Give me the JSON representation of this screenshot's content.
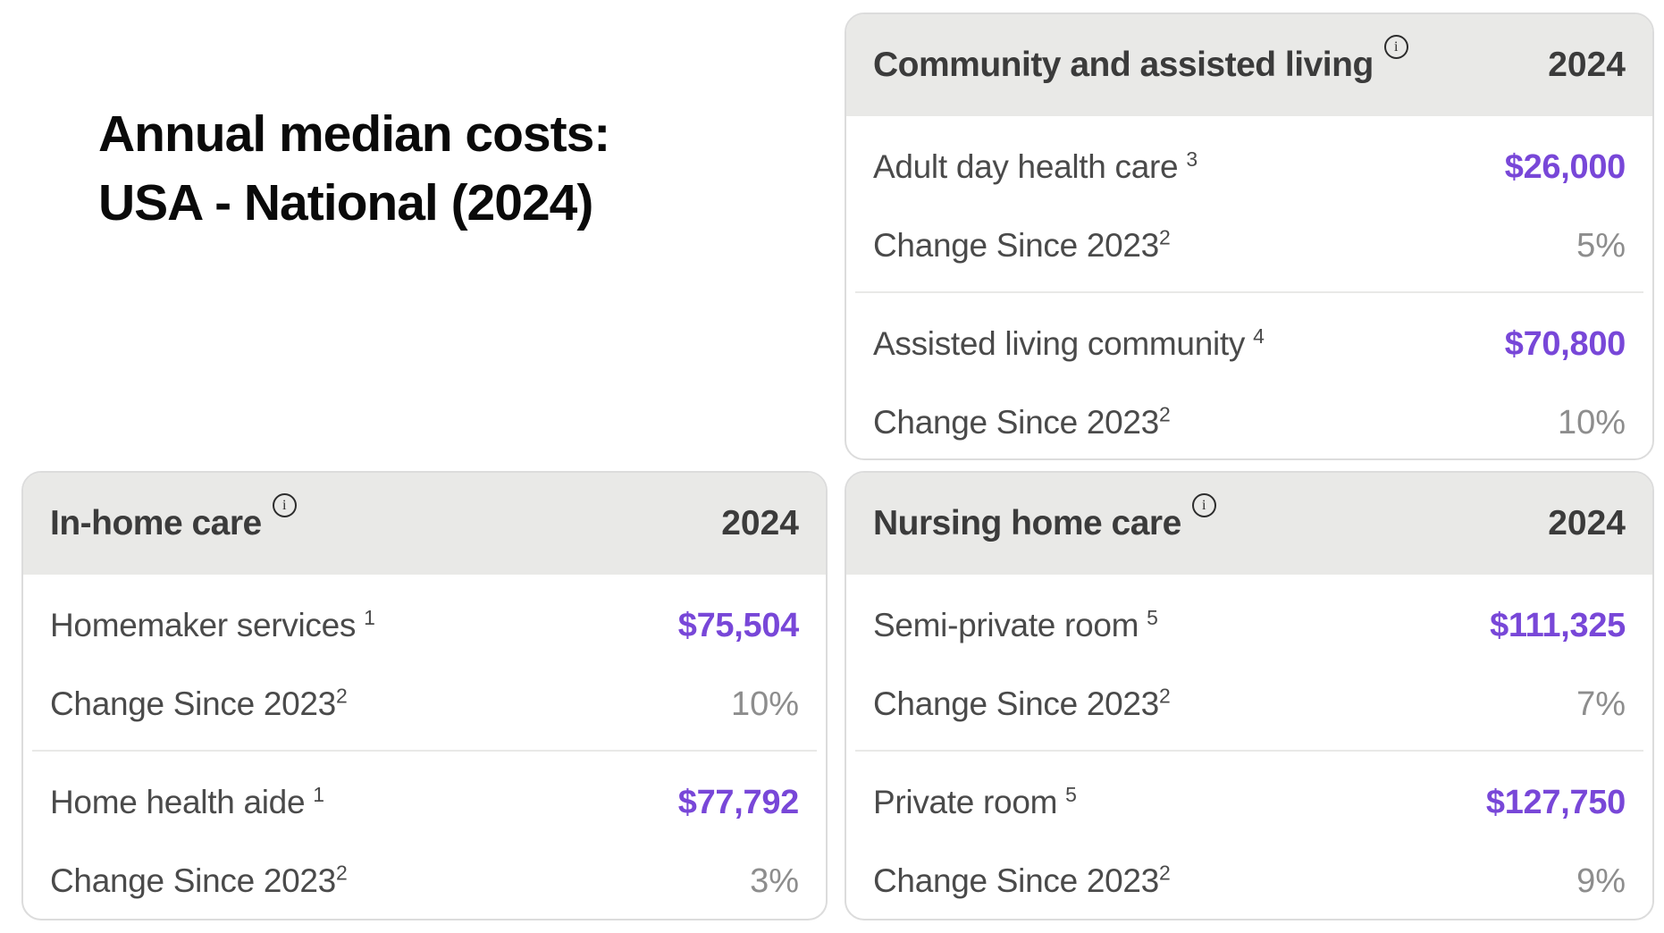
{
  "page": {
    "title_line1": "Annual median costs:",
    "title_line2": "USA - National (2024)"
  },
  "icons": {
    "info_glyph": "i"
  },
  "colors": {
    "value_accent": "#7847d8",
    "change_gray": "#8d8d8d",
    "header_bg": "#e9e9e7",
    "card_border": "#dcdcdc",
    "text_dark": "#3b3b3b"
  },
  "cards": [
    {
      "title": "Community and assisted living",
      "year": "2024",
      "groups": [
        {
          "label": "Adult day health care",
          "sup": "3",
          "value": "$26,000",
          "change_label": "Change Since 2023",
          "change_sup": "2",
          "change_value": "5%"
        },
        {
          "label": "Assisted living community",
          "sup": "4",
          "value": "$70,800",
          "change_label": "Change Since 2023",
          "change_sup": "2",
          "change_value": "10%"
        }
      ]
    },
    {
      "title": "In-home care",
      "year": "2024",
      "groups": [
        {
          "label": "Homemaker services",
          "sup": "1",
          "value": "$75,504",
          "change_label": "Change Since 2023",
          "change_sup": "2",
          "change_value": "10%"
        },
        {
          "label": "Home health aide",
          "sup": "1",
          "value": "$77,792",
          "change_label": "Change Since 2023",
          "change_sup": "2",
          "change_value": "3%"
        }
      ]
    },
    {
      "title": "Nursing home care",
      "year": "2024",
      "groups": [
        {
          "label": "Semi-private room",
          "sup": "5",
          "value": "$111,325",
          "change_label": "Change Since 2023",
          "change_sup": "2",
          "change_value": "7%"
        },
        {
          "label": "Private room",
          "sup": "5",
          "value": "$127,750",
          "change_label": "Change Since 2023",
          "change_sup": "2",
          "change_value": "9%"
        }
      ]
    }
  ],
  "chart_data": {
    "type": "table",
    "title": "Annual median costs: USA - National (2024)",
    "categories": [
      "Adult day health care",
      "Assisted living community",
      "Homemaker services",
      "Home health aide",
      "Semi-private room",
      "Private room"
    ],
    "series": [
      {
        "name": "2024 annual median cost (USD)",
        "values": [
          26000,
          70800,
          75504,
          77792,
          111325,
          127750
        ]
      },
      {
        "name": "Change since 2023 (%)",
        "values": [
          5,
          10,
          10,
          3,
          7,
          9
        ]
      }
    ]
  }
}
